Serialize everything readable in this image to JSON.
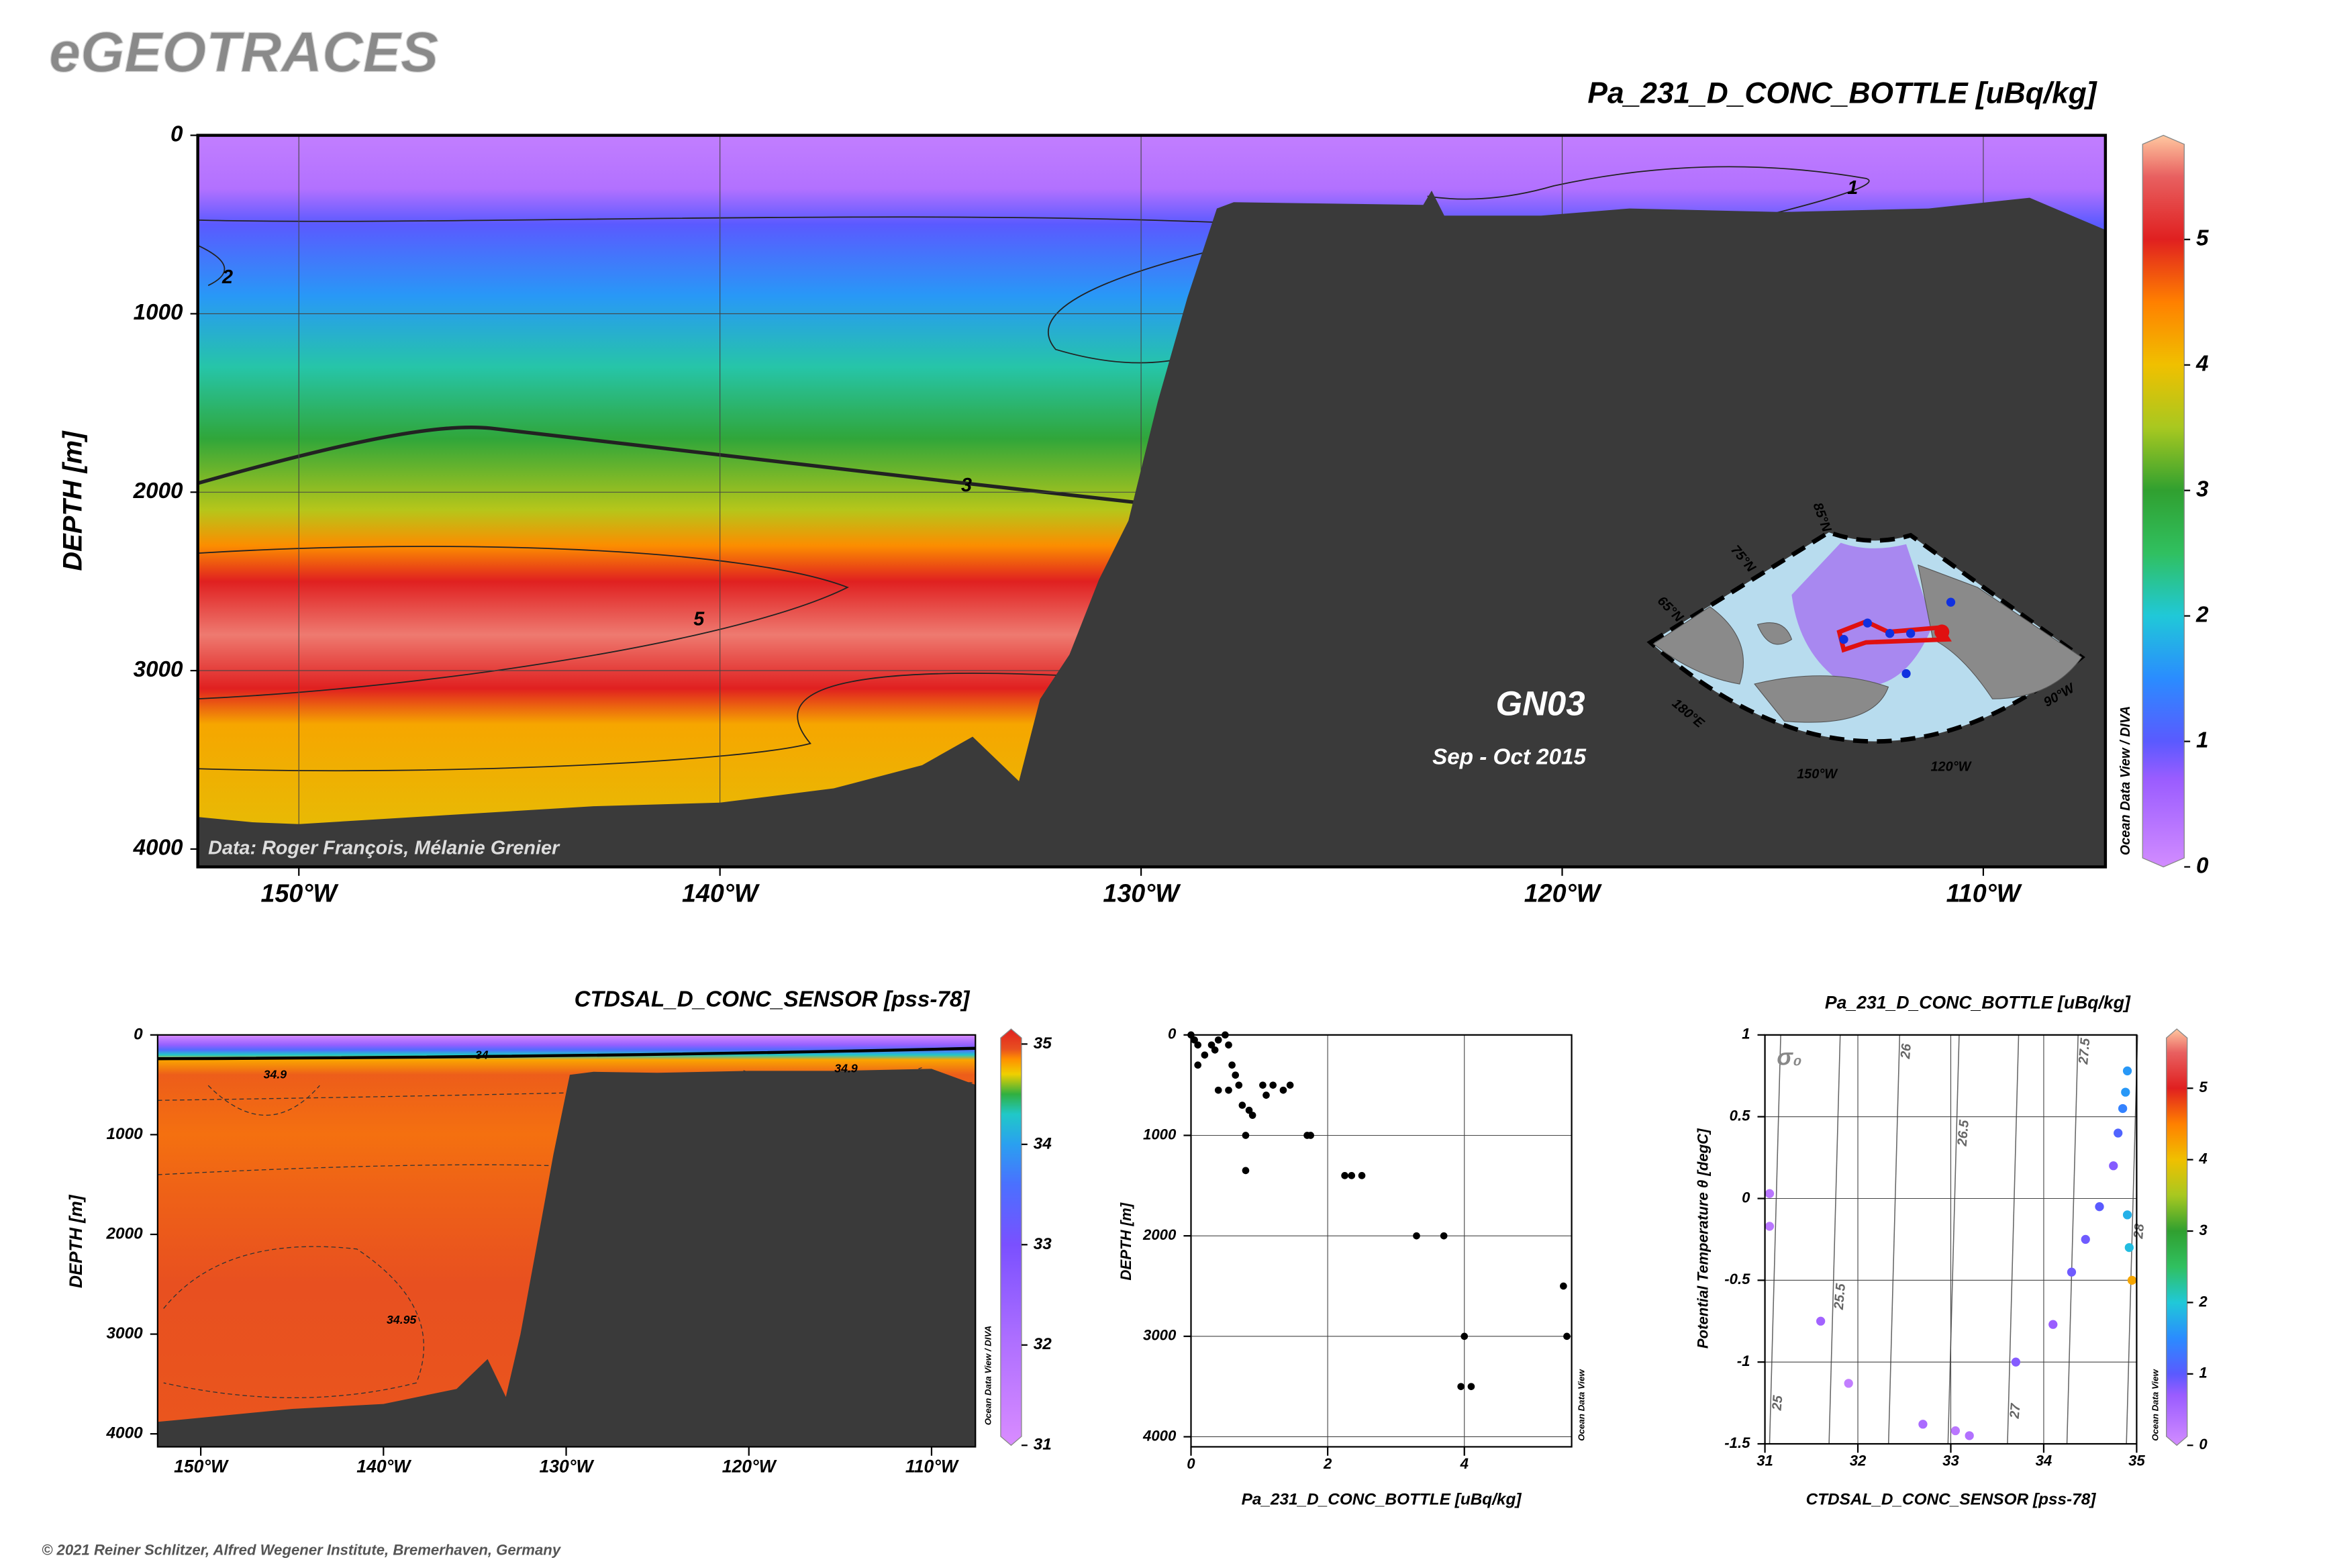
{
  "header": "eGEOTRACES",
  "footer": "© 2021 Reiner Schlitzer, Alfred Wegener Institute, Bremerhaven, Germany",
  "chart_data": [
    {
      "type": "section",
      "title": "Pa_231_D_CONC_BOTTLE [uBq/kg]",
      "y_label": "DEPTH [m]",
      "xlim": [
        -152.4,
        -107.1
      ],
      "xticks": [
        {
          "value": -150,
          "label": "150°W"
        },
        {
          "value": -140,
          "label": "140°W"
        },
        {
          "value": -130,
          "label": "130°W"
        },
        {
          "value": -120,
          "label": "120°W"
        },
        {
          "value": -110,
          "label": "110°W"
        }
      ],
      "ylim": [
        4100,
        0
      ],
      "yticks": [
        0,
        1000,
        2000,
        3000,
        4000
      ],
      "grid": true,
      "field_profile": {
        "depth": [
          0,
          300,
          500,
          900,
          1300,
          1700,
          2100,
          2300,
          2500,
          2800,
          3100,
          3300,
          4100
        ],
        "value": [
          0.2,
          0.4,
          1.0,
          1.6,
          2.2,
          2.9,
          3.6,
          4.4,
          5.0,
          5.6,
          5.0,
          4.2,
          3.9
        ]
      },
      "colormap": [
        [
          0,
          "#d28cff"
        ],
        [
          0.7,
          "#9a5cff"
        ],
        [
          1,
          "#5a5aff"
        ],
        [
          1.5,
          "#2a8cff"
        ],
        [
          2,
          "#20c8d8"
        ],
        [
          2.5,
          "#30c060"
        ],
        [
          3,
          "#30a030"
        ],
        [
          3.5,
          "#a8c820"
        ],
        [
          4,
          "#f0c000"
        ],
        [
          4.5,
          "#ff8000"
        ],
        [
          5,
          "#e02020"
        ],
        [
          5.5,
          "#e86060"
        ],
        [
          5.9,
          "#ffc8a0"
        ]
      ],
      "colorbar": {
        "lim": [
          0,
          5.83
        ],
        "ticks": [
          0,
          1,
          2,
          3,
          4,
          5
        ]
      },
      "bathymetry": {
        "x": [
          -152.4,
          -151.1,
          -150,
          -146.5,
          -143,
          -140,
          -137.3,
          -135.2,
          -134,
          -132.9,
          -132.4,
          -131.7,
          -131,
          -130.3,
          -129.6,
          -128.9,
          -128.2,
          -127.8,
          -123.3,
          -123.1,
          -122.8,
          -120.5,
          -118.4,
          -114.8,
          -111.3,
          -108.9,
          -107.1
        ],
        "depth": [
          3820,
          3850,
          3860,
          3810,
          3760,
          3740,
          3660,
          3530,
          3370,
          3620,
          3160,
          2910,
          2490,
          2160,
          1490,
          910,
          410,
          375,
          390,
          310,
          450,
          450,
          410,
          430,
          410,
          350,
          530
        ]
      },
      "contour_labels": [
        "1",
        "2",
        "3",
        "5"
      ],
      "cruise": "GN03",
      "period": "Sep - Oct 2015",
      "credit": "Data: Roger François, Mélanie Grenier",
      "watermark": "Ocean Data View / DIVA",
      "map_labels": [
        "85°N",
        "75°N",
        "65°N",
        "180°E",
        "150°W",
        "120°W",
        "90°W"
      ]
    },
    {
      "type": "section",
      "title": "CTDSAL_D_CONC_SENSOR [pss-78]",
      "y_label": "DEPTH [m]",
      "xlim": [
        -152.36,
        -107.6
      ],
      "xticks": [
        {
          "value": -150,
          "label": "150°W"
        },
        {
          "value": -140,
          "label": "140°W"
        },
        {
          "value": -130,
          "label": "130°W"
        },
        {
          "value": -120,
          "label": "120°W"
        },
        {
          "value": -110,
          "label": "110°W"
        }
      ],
      "ylim": [
        4130,
        0
      ],
      "yticks": [
        0,
        1000,
        2000,
        3000,
        4000
      ],
      "grid": false,
      "field_profile": {
        "depth": [
          0,
          100,
          150,
          200,
          250,
          400,
          1000,
          1500,
          2500,
          4130
        ],
        "value": [
          31,
          32.5,
          33.5,
          34.3,
          34.8,
          34.93,
          34.9,
          34.92,
          34.95,
          34.94
        ]
      },
      "colormap": [
        [
          31,
          "#d98cff"
        ],
        [
          32,
          "#b070ff"
        ],
        [
          33,
          "#7a50ff"
        ],
        [
          33.6,
          "#4a70ff"
        ],
        [
          34,
          "#2aa0f0"
        ],
        [
          34.3,
          "#20c8c8"
        ],
        [
          34.5,
          "#30b040"
        ],
        [
          34.7,
          "#f0d000"
        ],
        [
          34.85,
          "#ff9000"
        ],
        [
          34.95,
          "#e85020"
        ],
        [
          35.15,
          "#e02020"
        ]
      ],
      "colorbar": {
        "lim": [
          31,
          35.15
        ],
        "ticks": [
          31,
          32,
          33,
          34,
          35
        ]
      },
      "bathymetry": {
        "x": [
          -152.36,
          -145,
          -140,
          -136,
          -134.3,
          -133.3,
          -132.5,
          -131.7,
          -130.7,
          -129.8,
          -128.5,
          -125,
          -120,
          -115,
          -110,
          -107.6
        ],
        "depth": [
          3880,
          3750,
          3700,
          3550,
          3250,
          3630,
          3000,
          2200,
          1200,
          400,
          370,
          380,
          360,
          360,
          340,
          500
        ]
      },
      "contour_labels": [
        "34",
        "34.9",
        "34.9",
        "34.95"
      ],
      "watermark": "Ocean Data View / DIVA"
    },
    {
      "type": "scatter",
      "x_label": "Pa_231_D_CONC_BOTTLE [uBq/kg]",
      "y_label": "DEPTH [m]",
      "xlim": [
        0,
        5.57
      ],
      "xticks": [
        0,
        2,
        4
      ],
      "ylim": [
        4100,
        0
      ],
      "yticks": [
        0,
        1000,
        2000,
        3000,
        4000
      ],
      "grid": true,
      "color": "#000000",
      "x": [
        0,
        0.05,
        0.1,
        0.1,
        0.2,
        0.3,
        0.35,
        0.4,
        0.5,
        0.55,
        0.6,
        0.65,
        0.7,
        0.4,
        0.55,
        0.75,
        0.85,
        0.9,
        1.05,
        1.1,
        1.2,
        1.35,
        1.45,
        0.8,
        0.8,
        1.7,
        1.75,
        2.25,
        2.35,
        2.5,
        3.3,
        3.7,
        4.0,
        3.95,
        4.1,
        5.45,
        5.5
      ],
      "values": [
        0,
        50,
        100,
        300,
        200,
        100,
        150,
        50,
        0,
        100,
        300,
        400,
        500,
        550,
        550,
        700,
        750,
        800,
        500,
        600,
        500,
        550,
        500,
        1000,
        1350,
        1000,
        1000,
        1400,
        1400,
        1400,
        2000,
        2000,
        3000,
        3500,
        3500,
        2500,
        3000
      ],
      "watermark": "Ocean Data View"
    },
    {
      "type": "ts",
      "title": "Pa_231_D_CONC_BOTTLE [uBq/kg]",
      "x_label": "CTDSAL_D_CONC_SENSOR [pss-78]",
      "y_label": "Potential Temperature θ [degC]",
      "xlim": [
        31,
        35
      ],
      "xticks": [
        31,
        32,
        33,
        34,
        35
      ],
      "ylim": [
        -1.5,
        1
      ],
      "yticks": [
        -1.5,
        -1,
        -0.5,
        0,
        0.5,
        1
      ],
      "grid": true,
      "density_symbol": "σ₀",
      "isopycnals": [
        25,
        25.5,
        26,
        26.5,
        27,
        27.5,
        28
      ],
      "x": [
        31.05,
        31.05,
        31.6,
        31.9,
        32.7,
        33.05,
        33.2,
        33.7,
        34.1,
        34.3,
        34.45,
        34.6,
        34.75,
        34.8,
        34.85,
        34.88,
        34.9,
        34.9,
        34.92,
        34.95
      ],
      "values": [
        0.03,
        -0.17,
        -0.75,
        -1.13,
        -1.38,
        -1.42,
        -1.45,
        -1,
        -0.77,
        -0.45,
        -0.25,
        -0.05,
        0.2,
        0.4,
        0.55,
        0.65,
        0.78,
        -0.1,
        -0.3,
        -0.5
      ],
      "color_values": [
        0.3,
        0.3,
        0.6,
        0.2,
        0.5,
        0.3,
        0.4,
        0.8,
        0.7,
        0.9,
        0.9,
        1,
        0.8,
        1.1,
        1.4,
        1.6,
        1.6,
        1.8,
        1.9,
        4.2
      ],
      "colormap": [
        [
          0,
          "#d28cff"
        ],
        [
          0.7,
          "#9a5cff"
        ],
        [
          1,
          "#5a5aff"
        ],
        [
          1.5,
          "#2a8cff"
        ],
        [
          2,
          "#20c8d8"
        ],
        [
          2.5,
          "#30c060"
        ],
        [
          3,
          "#30a030"
        ],
        [
          3.5,
          "#a8c820"
        ],
        [
          4,
          "#f0c000"
        ],
        [
          4.5,
          "#ff8000"
        ],
        [
          5,
          "#e02020"
        ],
        [
          5.5,
          "#e86060"
        ],
        [
          5.9,
          "#ffc8a0"
        ]
      ],
      "colorbar": {
        "lim": [
          0,
          5.83
        ],
        "ticks": [
          0,
          1,
          2,
          3,
          4,
          5
        ]
      },
      "watermark": "Ocean Data View"
    }
  ]
}
